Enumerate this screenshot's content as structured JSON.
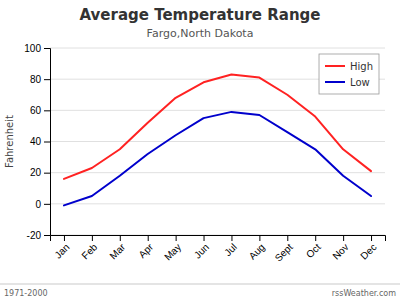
{
  "chart_data": {
    "type": "line",
    "title": "Average Temperature Range",
    "subtitle": "Fargo,North Dakota",
    "y_label": "Fahrenheit",
    "categories": [
      "Jan",
      "Feb",
      "Mar",
      "Apr",
      "May",
      "Jun",
      "Jul",
      "Aug",
      "Sept",
      "Oct",
      "Nov",
      "Dec"
    ],
    "series": [
      {
        "name": "High",
        "color": "#ff2222",
        "values": [
          16,
          23,
          35,
          52,
          68,
          78,
          83,
          81,
          70,
          56,
          35,
          21
        ]
      },
      {
        "name": "Low",
        "color": "#0000cc",
        "values": [
          -1,
          5,
          18,
          32,
          44,
          55,
          59,
          57,
          46,
          35,
          18,
          5
        ]
      }
    ],
    "ylim": [
      -20,
      100
    ],
    "yticks": [
      -20,
      0,
      20,
      40,
      60,
      80,
      100
    ],
    "grid": true,
    "legend": "upper right",
    "annotations": [
      "1971-2000",
      "rssWeather.com"
    ]
  }
}
